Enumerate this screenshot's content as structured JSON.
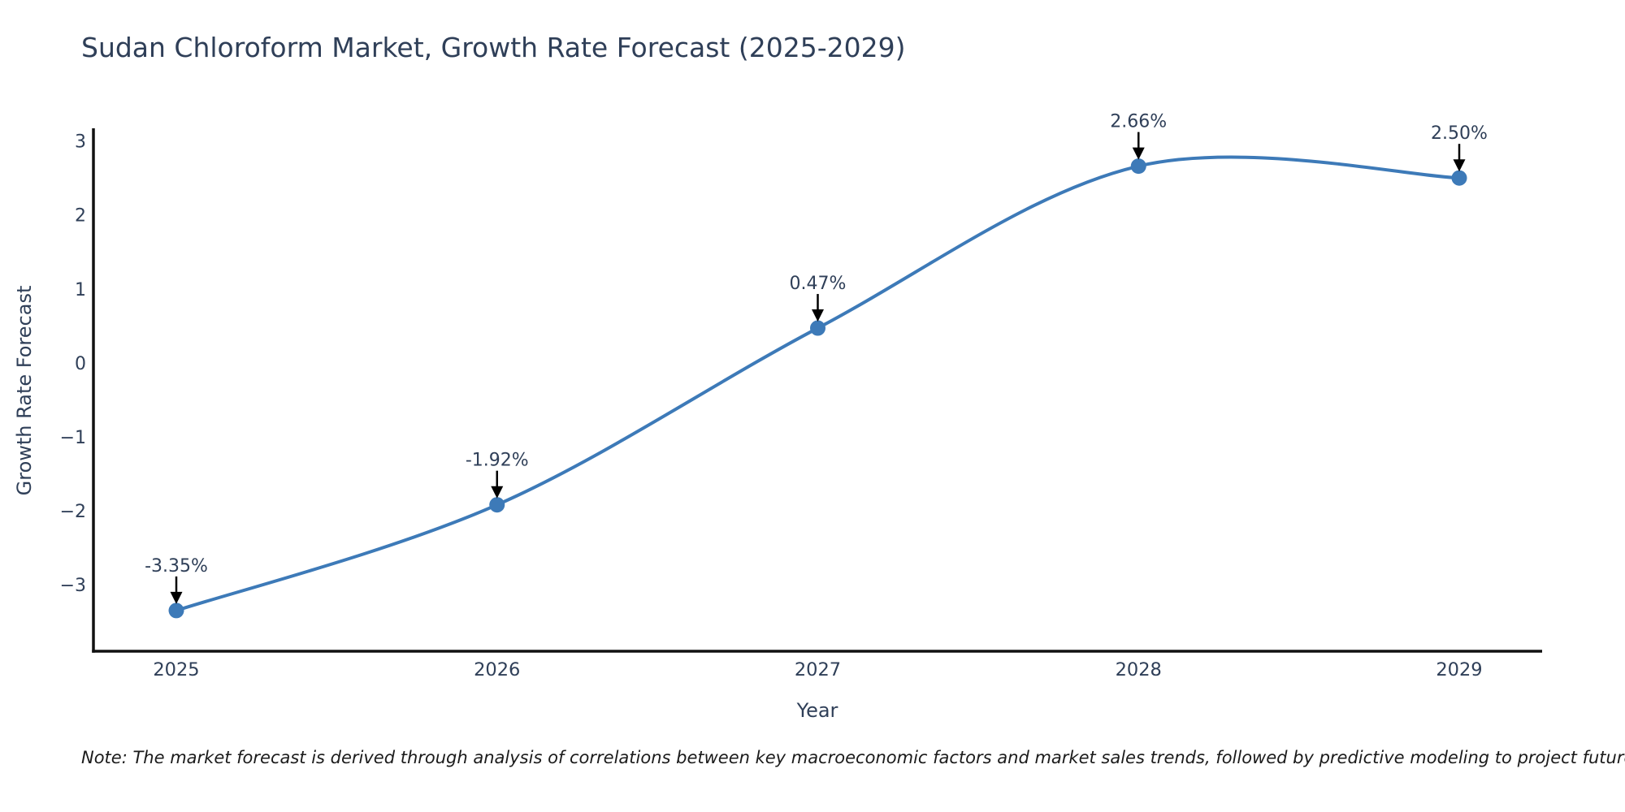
{
  "chart_data": {
    "type": "line",
    "title": "Sudan Chloroform Market, Growth Rate Forecast (2025-2029)",
    "xlabel": "Year",
    "ylabel": "Growth Rate Forecast",
    "categories": [
      "2025",
      "2026",
      "2027",
      "2028",
      "2029"
    ],
    "series": [
      {
        "name": "Growth Rate Forecast",
        "values": [
          -3.35,
          -1.92,
          0.47,
          2.66,
          2.5
        ]
      }
    ],
    "point_labels": [
      "-3.35%",
      "-1.92%",
      "0.47%",
      "2.66%",
      "2.50%"
    ],
    "ytick_labels": [
      "3",
      "2",
      "1",
      "0",
      "−1",
      "−2",
      "−3"
    ],
    "ytick_values": [
      3,
      2,
      1,
      0,
      -1,
      -2,
      -3
    ],
    "ylim": [
      -3.9,
      3.15
    ],
    "curve": "spline",
    "grid": false,
    "legend": "none",
    "markers": true,
    "annotation_arrows": true,
    "colors": {
      "line": "#3d7ab8",
      "marker": "#3d7ab8",
      "axis": "#111111",
      "text": "#2f3f58",
      "arrow": "#000000",
      "note": "#1b1b1b",
      "background": "#ffffff"
    }
  },
  "note": {
    "text": "Note: The market forecast is derived through analysis of correlations between key macroeconomic factors and market sales trends, followed by predictive modeling to project future sales"
  }
}
